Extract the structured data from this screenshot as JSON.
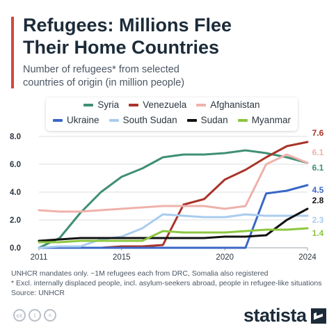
{
  "header": {
    "title_line1": "Refugees: Millions Flee",
    "title_line2": "Their Home Countries",
    "subtitle_line1": "Number of refugees* from selected",
    "subtitle_line2": "countries of origin (in million people)"
  },
  "colors": {
    "accent": "#d4473b",
    "grid": "#d8dde2",
    "axis": "#2b3540"
  },
  "chart_data": {
    "type": "line",
    "x": [
      2011,
      2012,
      2013,
      2014,
      2015,
      2016,
      2017,
      2018,
      2019,
      2020,
      2021,
      2022,
      2023,
      2024
    ],
    "xticks": [
      2011,
      2015,
      2020,
      2024
    ],
    "xlim": [
      2011,
      2024
    ],
    "ylim": [
      0,
      8
    ],
    "yticks": [
      0.0,
      2.0,
      4.0,
      6.0,
      8.0
    ],
    "ytick_labels": [
      "0.0",
      "2.0",
      "4.0",
      "6.0",
      "8.0"
    ],
    "grid": true,
    "legend_position": "top",
    "series": [
      {
        "name": "Syria",
        "color": "#3f8f75",
        "values": [
          0.0,
          0.7,
          2.5,
          4.0,
          5.1,
          5.7,
          6.5,
          6.7,
          6.7,
          6.8,
          7.0,
          6.8,
          6.5,
          6.1
        ],
        "end_label": "6.1"
      },
      {
        "name": "Venezuela",
        "color": "#a9342a",
        "values": [
          0.0,
          0.0,
          0.0,
          0.0,
          0.1,
          0.1,
          0.2,
          3.1,
          3.5,
          4.9,
          5.6,
          6.5,
          7.3,
          7.6
        ],
        "end_label": "7.6"
      },
      {
        "name": "Afghanistan",
        "color": "#efb1ab",
        "values": [
          2.7,
          2.6,
          2.6,
          2.7,
          2.8,
          2.9,
          3.0,
          3.0,
          3.0,
          2.8,
          3.0,
          6.0,
          6.7,
          6.1
        ],
        "end_label": "6.1"
      },
      {
        "name": "Ukraine",
        "color": "#3a66c8",
        "values": [
          0.0,
          0.0,
          0.0,
          0.0,
          0.0,
          0.0,
          0.0,
          0.0,
          0.0,
          0.0,
          0.0,
          3.9,
          4.1,
          4.5
        ],
        "end_label": "4.5"
      },
      {
        "name": "South Sudan",
        "color": "#a9ccef",
        "values": [
          0.0,
          0.1,
          0.1,
          0.6,
          0.8,
          1.4,
          2.4,
          2.3,
          2.2,
          2.2,
          2.4,
          2.3,
          2.3,
          2.3
        ],
        "end_label": "2.3"
      },
      {
        "name": "Sudan",
        "color": "#111111",
        "values": [
          0.5,
          0.6,
          0.7,
          0.7,
          0.7,
          0.7,
          0.7,
          0.7,
          0.7,
          0.8,
          0.8,
          0.9,
          2.0,
          2.8
        ],
        "end_label": "2.8"
      },
      {
        "name": "Myanmar",
        "color": "#8cc63f",
        "values": [
          0.4,
          0.4,
          0.5,
          0.5,
          0.5,
          0.5,
          1.2,
          1.1,
          1.1,
          1.1,
          1.2,
          1.3,
          1.3,
          1.4
        ],
        "end_label": "1.4"
      }
    ]
  },
  "notes": {
    "line1": "UNHCR mandates only. ~1M refugees each from DRC, Somalia also registered",
    "line2": "* Excl. internally displaced people, incl. asylum-seekers abroad, people in refugee-like situations",
    "source": "Source: UNHCR"
  },
  "footer": {
    "brand": "statista",
    "icons": [
      "creative-commons-icon",
      "attribution-icon",
      "no-derivatives-icon"
    ]
  }
}
